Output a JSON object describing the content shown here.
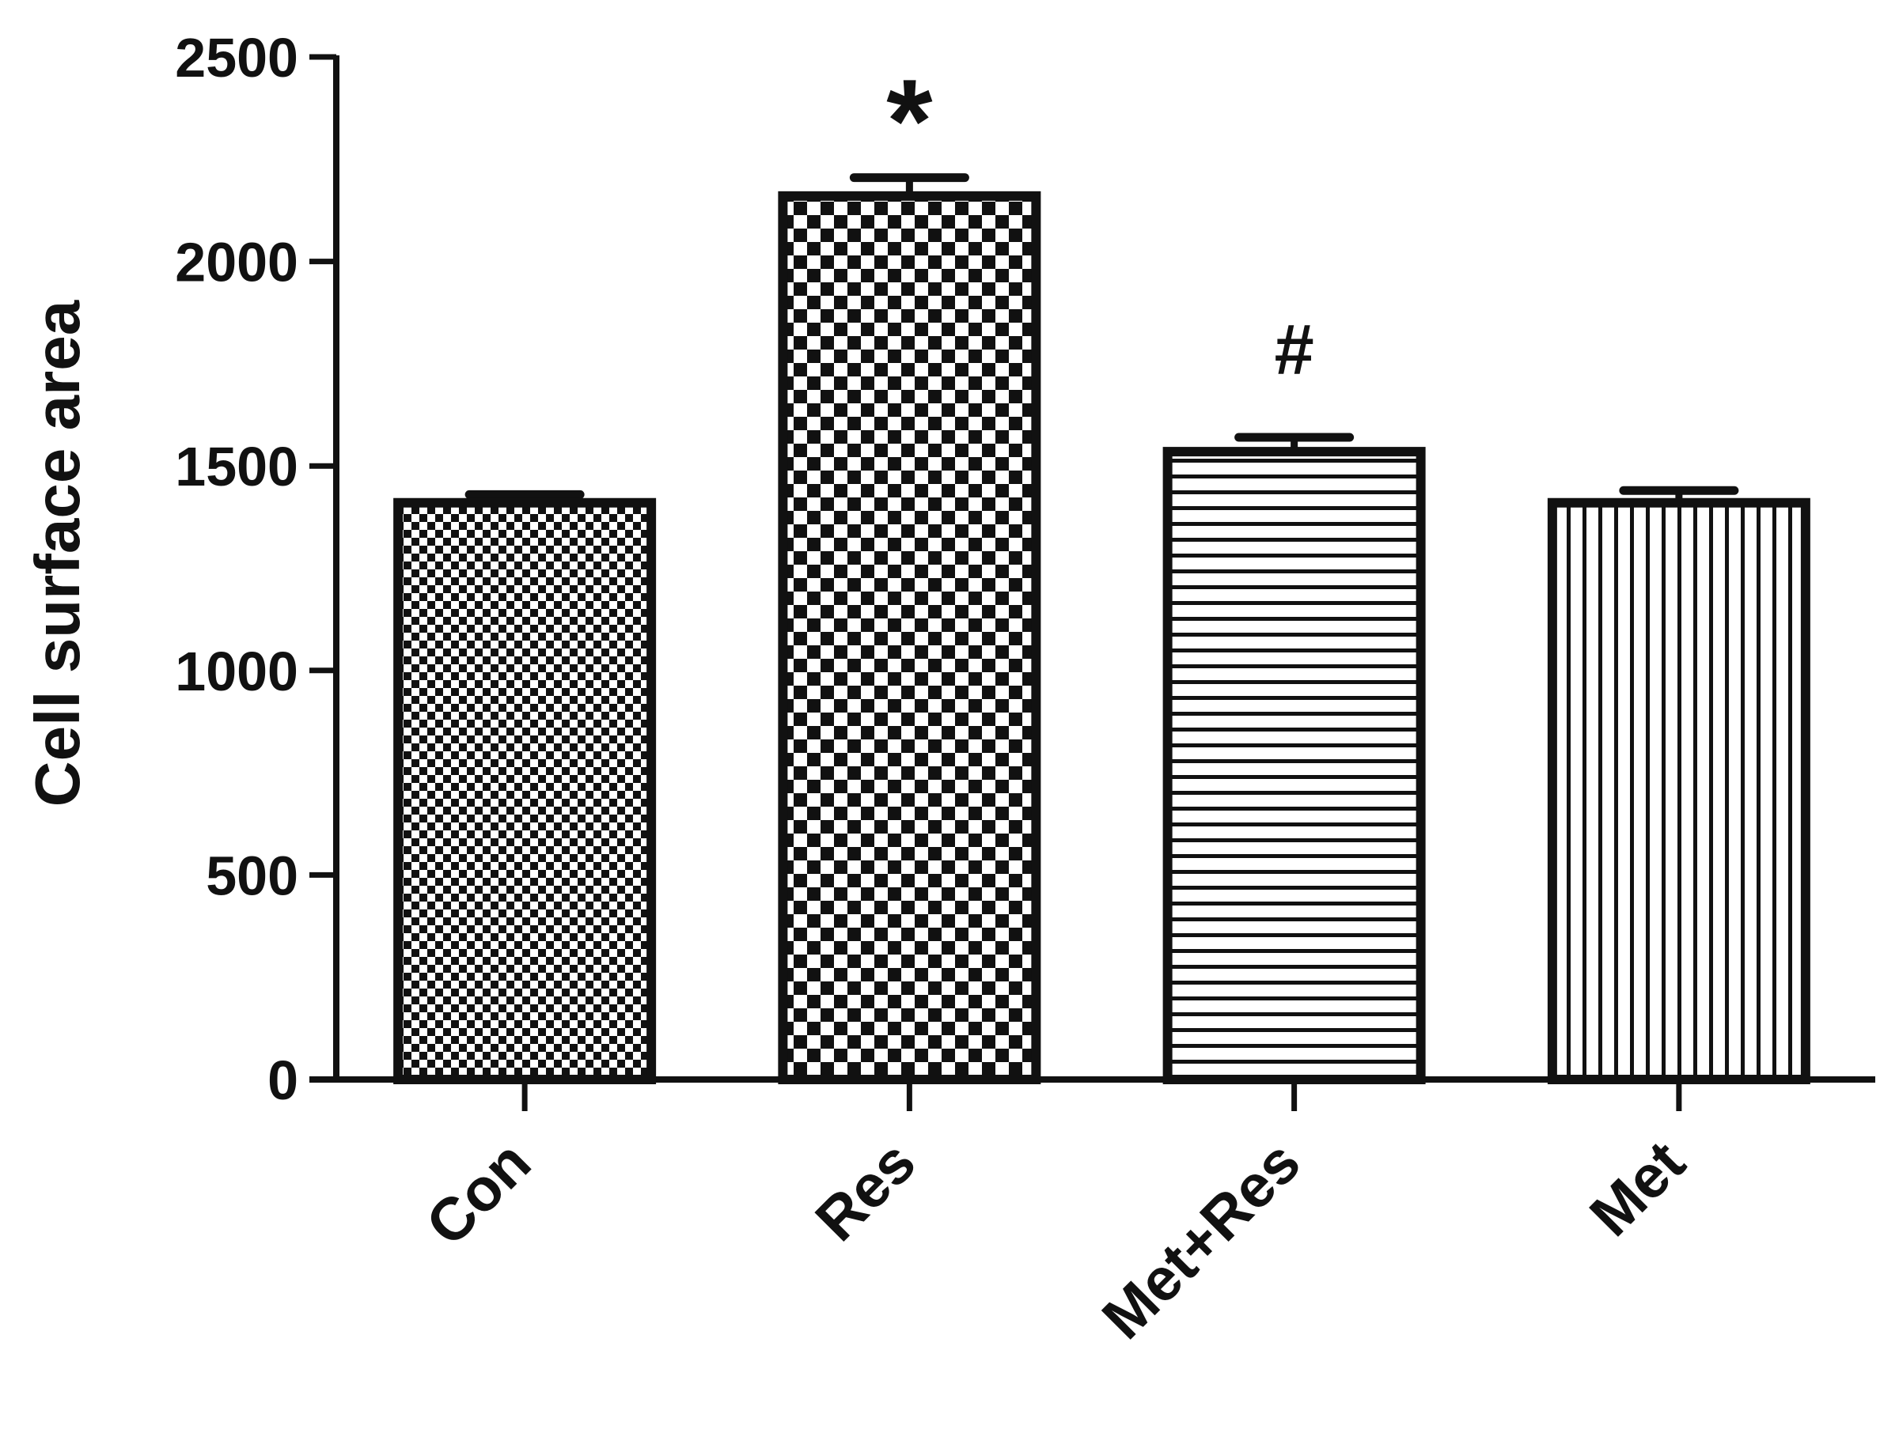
{
  "chart_data": {
    "type": "bar",
    "title": "",
    "xlabel": "",
    "ylabel": "Cell surface area",
    "ylim": [
      0,
      2500
    ],
    "yticks": [
      0,
      500,
      1000,
      1500,
      2000,
      2500
    ],
    "ytick_labels": [
      "0",
      "500",
      "1000",
      "1500",
      "2000",
      "2500"
    ],
    "categories": [
      "Con",
      "Res",
      "Met+Res",
      "Met"
    ],
    "values": [
      1410,
      2160,
      1535,
      1410
    ],
    "error": [
      20,
      45,
      35,
      30
    ],
    "annotations": [
      "",
      "*",
      "#",
      ""
    ],
    "patterns": [
      "fine-checker",
      "coarse-checker",
      "horizontal-stripes",
      "vertical-stripes"
    ],
    "grid": false,
    "legend": "none",
    "colors": {
      "bar_stroke": "#111111",
      "fill": "#ffffff",
      "ink": "#111111"
    }
  }
}
